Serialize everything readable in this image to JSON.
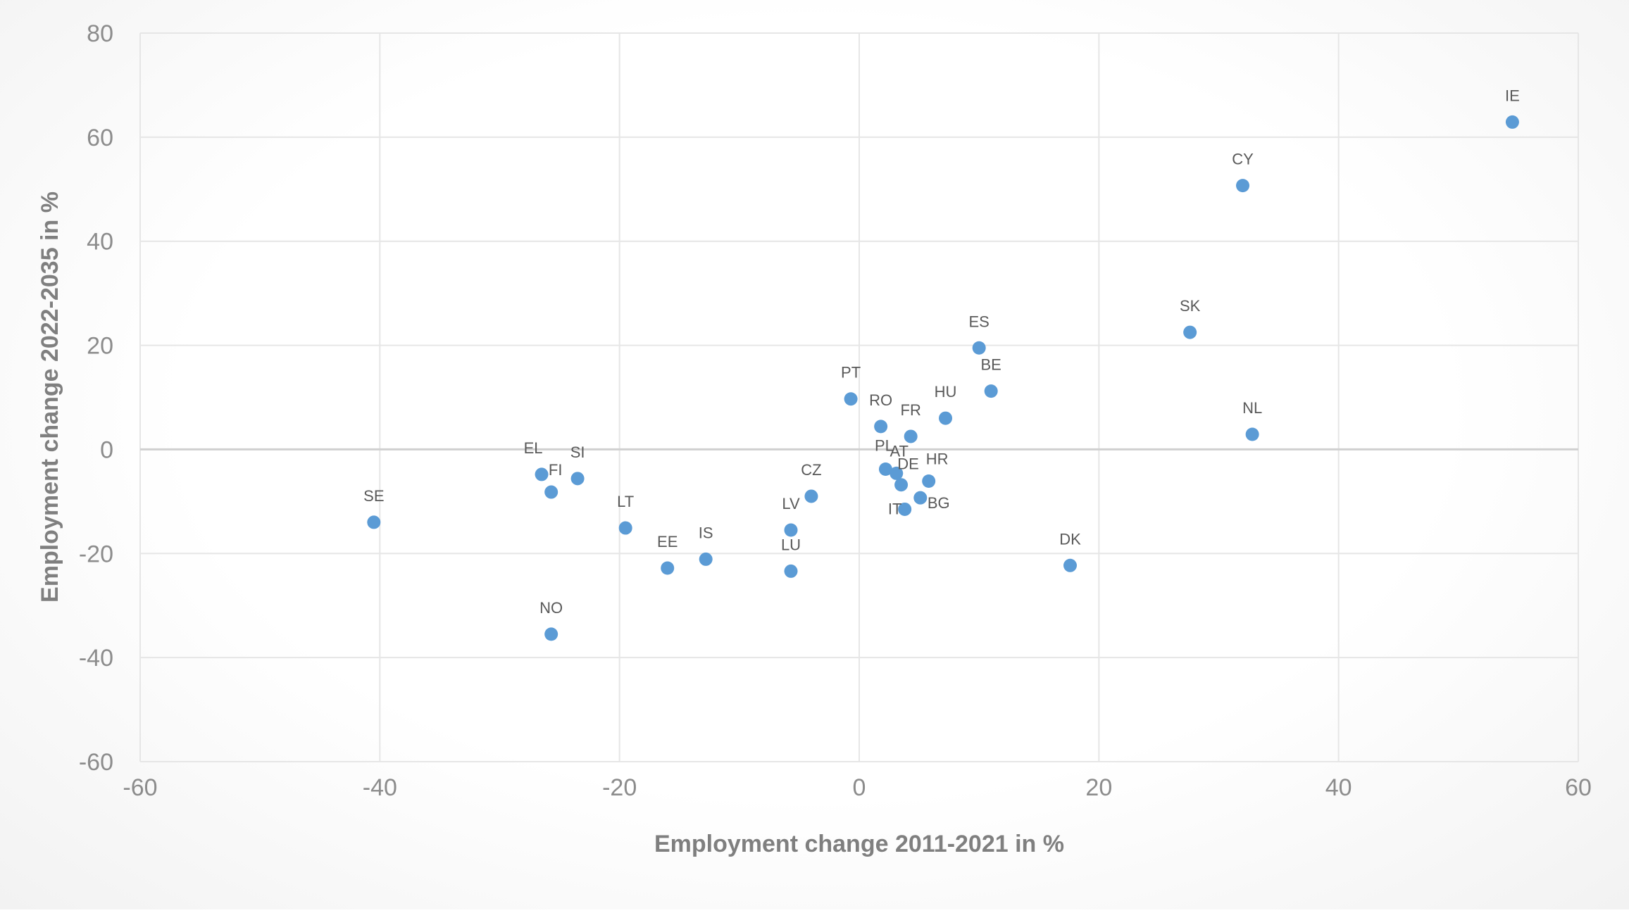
{
  "chart_data": {
    "type": "scatter",
    "title": "",
    "xlabel": "Employment change 2011-2021 in %",
    "ylabel": "Employment change 2022-2035 in %",
    "xlim": [
      -60,
      60
    ],
    "ylim": [
      -60,
      80
    ],
    "x_ticks": [
      -60,
      -40,
      -20,
      0,
      20,
      40,
      60
    ],
    "y_ticks": [
      -60,
      -40,
      -20,
      0,
      20,
      40,
      60,
      80
    ],
    "grid": true,
    "legend": "none",
    "marker_color": "#5b9bd5",
    "points": [
      {
        "label": "IE",
        "x": 54.5,
        "y": 62.9
      },
      {
        "label": "CY",
        "x": 32.0,
        "y": 50.7
      },
      {
        "label": "SK",
        "x": 27.6,
        "y": 22.5
      },
      {
        "label": "NL",
        "x": 32.8,
        "y": 2.9
      },
      {
        "label": "ES",
        "x": 10.0,
        "y": 19.5
      },
      {
        "label": "BE",
        "x": 11.0,
        "y": 11.2
      },
      {
        "label": "HU",
        "x": 7.2,
        "y": 6.0
      },
      {
        "label": "FR",
        "x": 4.3,
        "y": 2.5
      },
      {
        "label": "RO",
        "x": 1.8,
        "y": 4.4
      },
      {
        "label": "PT",
        "x": -0.7,
        "y": 9.7
      },
      {
        "label": "PL",
        "x": 2.2,
        "y": -3.8
      },
      {
        "label": "AT",
        "x": 3.1,
        "y": -4.6
      },
      {
        "label": "DE",
        "x": 3.5,
        "y": -6.8
      },
      {
        "label": "HR",
        "x": 5.8,
        "y": -6.1
      },
      {
        "label": "BG",
        "x": 5.1,
        "y": -9.3
      },
      {
        "label": "IT",
        "x": 3.8,
        "y": -11.5
      },
      {
        "label": "CZ",
        "x": -4.0,
        "y": -9.0
      },
      {
        "label": "LV",
        "x": -5.7,
        "y": -15.5
      },
      {
        "label": "LU",
        "x": -5.7,
        "y": -23.4
      },
      {
        "label": "IS",
        "x": -12.8,
        "y": -21.1
      },
      {
        "label": "EE",
        "x": -16.0,
        "y": -22.8
      },
      {
        "label": "LT",
        "x": -19.5,
        "y": -15.1
      },
      {
        "label": "SI",
        "x": -23.5,
        "y": -5.6
      },
      {
        "label": "EL",
        "x": -26.5,
        "y": -4.8
      },
      {
        "label": "FI",
        "x": -25.7,
        "y": -8.2
      },
      {
        "label": "SE",
        "x": -40.5,
        "y": -14.0
      },
      {
        "label": "NO",
        "x": -25.7,
        "y": -35.5
      },
      {
        "label": "DK",
        "x": 17.6,
        "y": -22.3
      }
    ]
  }
}
